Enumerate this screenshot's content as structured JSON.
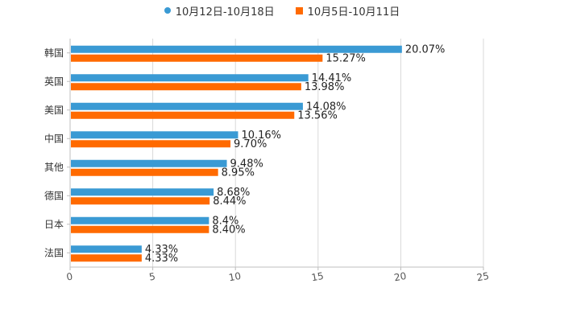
{
  "chart_data": {
    "type": "bar",
    "orientation": "horizontal",
    "categories": [
      "韩国",
      "英国",
      "美国",
      "中国",
      "其他",
      "德国",
      "日本",
      "法国"
    ],
    "series": [
      {
        "name": "10月12日-10月18日",
        "color": "#3a9ad4",
        "values": [
          20.07,
          14.41,
          14.08,
          10.16,
          9.48,
          8.68,
          8.4,
          4.33
        ],
        "labels": [
          "20.07%",
          "14.41%",
          "14.08%",
          "10.16%",
          "9.48%",
          "8.68%",
          "8.4%",
          "4.33%"
        ]
      },
      {
        "name": "10月5日-10月11日",
        "color": "#ff6a00",
        "values": [
          15.27,
          13.98,
          13.56,
          9.7,
          8.95,
          8.44,
          8.4,
          4.33
        ],
        "labels": [
          "15.27%",
          "13.98%",
          "13.56%",
          "9.70%",
          "8.95%",
          "8.44%",
          "8.40%",
          "4.33%"
        ]
      }
    ],
    "xlim": [
      0,
      25
    ],
    "xticks": [
      "0",
      "5",
      "10",
      "15",
      "20",
      "25"
    ],
    "grid": true,
    "legend_position": "top-center",
    "title": "",
    "xlabel": "",
    "ylabel": ""
  }
}
